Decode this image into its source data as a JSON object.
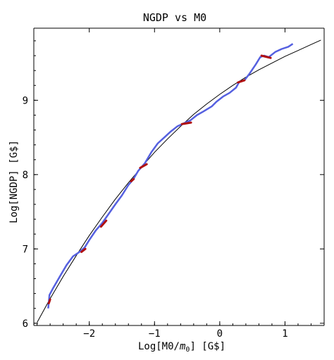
{
  "chart_data": {
    "type": "line",
    "title": "NGDP vs M0",
    "xlabel_prefix": "Log[M0/",
    "xlabel_var": "m",
    "xlabel_sub": "0",
    "xlabel_suffix": "] [G$]",
    "ylabel": "Log[NGDP] [G$]",
    "xlim": [
      -2.85,
      1.6
    ],
    "ylim": [
      5.97,
      9.97
    ],
    "xticks": [
      -2,
      -1,
      0,
      1
    ],
    "xtick_labels": [
      "−2",
      "−1",
      "0",
      "1"
    ],
    "yticks": [
      6,
      7,
      8,
      9
    ],
    "ytick_labels": [
      "6",
      "7",
      "8",
      "9"
    ],
    "grid": false,
    "colors": {
      "fit": "#000000",
      "data": "#5560e0",
      "highlight": "#b01010"
    },
    "series": [
      {
        "role": "fit",
        "x": [
          -2.8,
          -2.6,
          -2.4,
          -2.2,
          -2.0,
          -1.8,
          -1.6,
          -1.4,
          -1.2,
          -1.0,
          -0.8,
          -0.6,
          -0.4,
          -0.2,
          0.0,
          0.2,
          0.4,
          0.6,
          0.8,
          1.0,
          1.2,
          1.4,
          1.55
        ],
        "y": [
          6.01,
          6.33,
          6.63,
          6.91,
          7.18,
          7.43,
          7.67,
          7.89,
          8.1,
          8.3,
          8.48,
          8.65,
          8.81,
          8.95,
          9.08,
          9.2,
          9.31,
          9.41,
          9.5,
          9.59,
          9.67,
          9.75,
          9.81
        ]
      },
      {
        "role": "data",
        "x": [
          -2.63,
          -2.61,
          -2.55,
          -2.45,
          -2.35,
          -2.25,
          -2.15,
          -2.07,
          -2.0,
          -1.9,
          -1.8,
          -1.72,
          -1.6,
          -1.5,
          -1.4,
          -1.33,
          -1.25,
          -1.15,
          -1.05,
          -0.95,
          -0.85,
          -0.75,
          -0.65,
          -0.55,
          -0.45,
          -0.35,
          -0.25,
          -0.12,
          -0.05,
          0.05,
          0.15,
          0.25,
          0.3,
          0.38,
          0.45,
          0.55,
          0.62,
          0.68,
          0.75,
          0.85,
          0.95,
          1.05,
          1.12
        ],
        "y": [
          6.2,
          6.38,
          6.48,
          6.63,
          6.78,
          6.9,
          6.96,
          7.02,
          7.12,
          7.25,
          7.35,
          7.45,
          7.6,
          7.72,
          7.86,
          7.93,
          8.05,
          8.15,
          8.3,
          8.42,
          8.5,
          8.58,
          8.65,
          8.69,
          8.73,
          8.8,
          8.85,
          8.92,
          8.98,
          9.05,
          9.1,
          9.17,
          9.25,
          9.27,
          9.35,
          9.48,
          9.58,
          9.6,
          9.58,
          9.65,
          9.69,
          9.72,
          9.76
        ]
      },
      {
        "role": "highlight",
        "segments": [
          {
            "x": [
              -2.62,
              -2.6
            ],
            "y": [
              6.27,
              6.32
            ]
          },
          {
            "x": [
              -2.12,
              -2.06
            ],
            "y": [
              6.96,
              7.0
            ]
          },
          {
            "x": [
              -1.82,
              -1.74
            ],
            "y": [
              7.3,
              7.38
            ]
          },
          {
            "x": [
              -1.36,
              -1.32
            ],
            "y": [
              7.91,
              7.94
            ]
          },
          {
            "x": [
              -1.22,
              -1.12
            ],
            "y": [
              8.09,
              8.14
            ]
          },
          {
            "x": [
              -0.58,
              -0.44
            ],
            "y": [
              8.68,
              8.7
            ]
          },
          {
            "x": [
              0.28,
              0.38
            ],
            "y": [
              9.24,
              9.27
            ]
          },
          {
            "x": [
              0.64,
              0.78
            ],
            "y": [
              9.6,
              9.57
            ]
          }
        ]
      }
    ]
  }
}
